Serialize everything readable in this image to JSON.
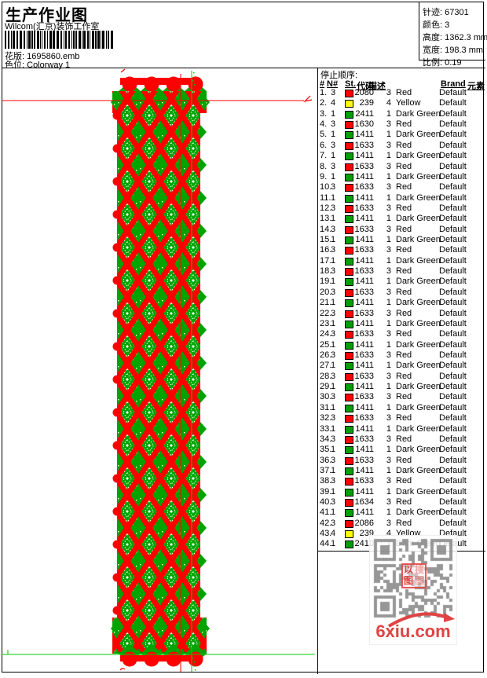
{
  "header": {
    "title": "生产作业图",
    "studio": "Wilcom(汇京)装饰工作室",
    "design_label": "花版:",
    "design_value": "1695860.emb",
    "colorway_label": "色位:",
    "colorway_value": "Colorway 1"
  },
  "info": {
    "items": [
      {
        "label": "针迹:",
        "value": "67301"
      },
      {
        "label": "颜色:",
        "value": "3"
      },
      {
        "label": "高度:",
        "value": "1362.3 mm"
      },
      {
        "label": "宽度:",
        "value": "198.3 mm"
      },
      {
        "label": "比例:",
        "value": "0.19"
      }
    ]
  },
  "stop_sequence": {
    "title": "停止顺序:",
    "columns": [
      "#",
      "N#",
      "St.",
      "代码",
      "描述",
      "Brand",
      "元素"
    ],
    "palette": {
      "red": "#FF0000",
      "yellow": "#FFFF00",
      "green": "#00A000"
    },
    "rows": [
      [
        "1.",
        "3",
        "red",
        "2080",
        "3",
        "Red",
        "Default"
      ],
      [
        "2.",
        "4",
        "yellow",
        "239",
        "4",
        "Yellow",
        "Default"
      ],
      [
        "3.",
        "1",
        "green",
        "2411",
        "1",
        "Dark Green",
        "Default"
      ],
      [
        "4.",
        "3",
        "red",
        "1630",
        "3",
        "Red",
        "Default"
      ],
      [
        "5.",
        "1",
        "green",
        "1411",
        "1",
        "Dark Green",
        "Default"
      ],
      [
        "6.",
        "3",
        "red",
        "1633",
        "3",
        "Red",
        "Default"
      ],
      [
        "7.",
        "1",
        "green",
        "1411",
        "1",
        "Dark Green",
        "Default"
      ],
      [
        "8.",
        "3",
        "red",
        "1633",
        "3",
        "Red",
        "Default"
      ],
      [
        "9.",
        "1",
        "green",
        "1411",
        "1",
        "Dark Green",
        "Default"
      ],
      [
        "10.",
        "3",
        "red",
        "1633",
        "3",
        "Red",
        "Default"
      ],
      [
        "11.",
        "1",
        "green",
        "1411",
        "1",
        "Dark Green",
        "Default"
      ],
      [
        "12.",
        "3",
        "red",
        "1633",
        "3",
        "Red",
        "Default"
      ],
      [
        "13.",
        "1",
        "green",
        "1411",
        "1",
        "Dark Green",
        "Default"
      ],
      [
        "14.",
        "3",
        "red",
        "1633",
        "3",
        "Red",
        "Default"
      ],
      [
        "15.",
        "1",
        "green",
        "1411",
        "1",
        "Dark Green",
        "Default"
      ],
      [
        "16.",
        "3",
        "red",
        "1633",
        "3",
        "Red",
        "Default"
      ],
      [
        "17.",
        "1",
        "green",
        "1411",
        "1",
        "Dark Green",
        "Default"
      ],
      [
        "18.",
        "3",
        "red",
        "1633",
        "3",
        "Red",
        "Default"
      ],
      [
        "19.",
        "1",
        "green",
        "1411",
        "1",
        "Dark Green",
        "Default"
      ],
      [
        "20.",
        "3",
        "red",
        "1633",
        "3",
        "Red",
        "Default"
      ],
      [
        "21.",
        "1",
        "green",
        "1411",
        "1",
        "Dark Green",
        "Default"
      ],
      [
        "22.",
        "3",
        "red",
        "1633",
        "3",
        "Red",
        "Default"
      ],
      [
        "23.",
        "1",
        "green",
        "1411",
        "1",
        "Dark Green",
        "Default"
      ],
      [
        "24.",
        "3",
        "red",
        "1633",
        "3",
        "Red",
        "Default"
      ],
      [
        "25.",
        "1",
        "green",
        "1411",
        "1",
        "Dark Green",
        "Default"
      ],
      [
        "26.",
        "3",
        "red",
        "1633",
        "3",
        "Red",
        "Default"
      ],
      [
        "27.",
        "1",
        "green",
        "1411",
        "1",
        "Dark Green",
        "Default"
      ],
      [
        "28.",
        "3",
        "red",
        "1633",
        "3",
        "Red",
        "Default"
      ],
      [
        "29.",
        "1",
        "green",
        "1411",
        "1",
        "Dark Green",
        "Default"
      ],
      [
        "30.",
        "3",
        "red",
        "1633",
        "3",
        "Red",
        "Default"
      ],
      [
        "31.",
        "1",
        "green",
        "1411",
        "1",
        "Dark Green",
        "Default"
      ],
      [
        "32.",
        "3",
        "red",
        "1633",
        "3",
        "Red",
        "Default"
      ],
      [
        "33.",
        "1",
        "green",
        "1411",
        "1",
        "Dark Green",
        "Default"
      ],
      [
        "34.",
        "3",
        "red",
        "1633",
        "3",
        "Red",
        "Default"
      ],
      [
        "35.",
        "1",
        "green",
        "1411",
        "1",
        "Dark Green",
        "Default"
      ],
      [
        "36.",
        "3",
        "red",
        "1633",
        "3",
        "Red",
        "Default"
      ],
      [
        "37.",
        "1",
        "green",
        "1411",
        "1",
        "Dark Green",
        "Default"
      ],
      [
        "38.",
        "3",
        "red",
        "1633",
        "3",
        "Red",
        "Default"
      ],
      [
        "39.",
        "1",
        "green",
        "1411",
        "1",
        "Dark Green",
        "Default"
      ],
      [
        "40.",
        "3",
        "red",
        "1634",
        "3",
        "Red",
        "Default"
      ],
      [
        "41.",
        "1",
        "green",
        "1411",
        "1",
        "Dark Green",
        "Default"
      ],
      [
        "42.",
        "3",
        "red",
        "2086",
        "3",
        "Red",
        "Default"
      ],
      [
        "43.",
        "4",
        "yellow",
        "239",
        "4",
        "Yellow",
        "Default"
      ],
      [
        "44.",
        "1",
        "green",
        "2410",
        "1",
        "Dark Green",
        "Default"
      ]
    ]
  },
  "design": {
    "thread_red": "#FF0000",
    "thread_green": "#00A300",
    "guide_red": "#FF0000",
    "guide_green": "#00CC00"
  },
  "watermark": {
    "site": "6xiu.com",
    "stamp_chars": [
      "以",
      "搜",
      "图",
      "图"
    ]
  }
}
